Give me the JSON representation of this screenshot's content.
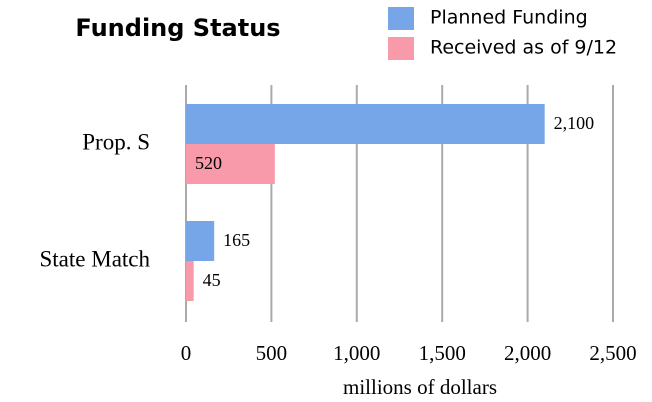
{
  "chart_data": {
    "type": "hbar",
    "title": "Funding Status",
    "categories": [
      "Prop. S",
      "State Match"
    ],
    "series": [
      {
        "name": "Planned Funding",
        "color": "#77a6e8",
        "values": [
          2100,
          165
        ],
        "value_labels": [
          "2,100",
          "165"
        ]
      },
      {
        "name": "Received as of 9/12",
        "color": "#f99aaa",
        "values": [
          520,
          45
        ]
      }
    ],
    "xlabel": "millions of dollars",
    "xlim": [
      0,
      2500
    ],
    "xticks": [
      0,
      500,
      {
        "value": 1000,
        "label": "1,000"
      },
      {
        "value": 1500,
        "label": "1,500"
      },
      {
        "value": 2000,
        "label": "2,000"
      },
      {
        "value": 2500,
        "label": "2,500"
      }
    ],
    "grid": true
  }
}
